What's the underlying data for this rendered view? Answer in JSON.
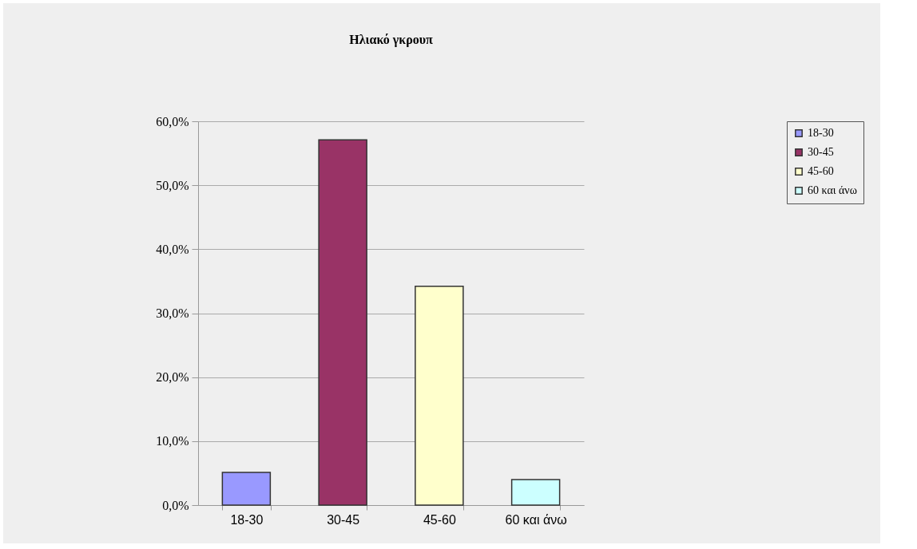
{
  "chart_data": {
    "type": "bar",
    "title": "Ηλιακό γκρουπ",
    "categories": [
      "18-30",
      "30-45",
      "45-60",
      "60 και άνω"
    ],
    "series": [
      {
        "name": "18-30",
        "color": "#9999ff",
        "values": [
          5.1,
          null,
          null,
          null
        ]
      },
      {
        "name": "30-45",
        "color": "#993366",
        "values": [
          null,
          57.1,
          null,
          null
        ]
      },
      {
        "name": "45-60",
        "color": "#ffffcc",
        "values": [
          null,
          null,
          34.2,
          null
        ]
      },
      {
        "name": "60 και άνω",
        "color": "#ccffff",
        "values": [
          null,
          null,
          null,
          4.0
        ]
      }
    ],
    "ylim": [
      0,
      60
    ],
    "yticks": [
      {
        "value": 0,
        "label": "0,0%"
      },
      {
        "value": 10,
        "label": "10,0%"
      },
      {
        "value": 20,
        "label": "20,0%"
      },
      {
        "value": 30,
        "label": "30,0%"
      },
      {
        "value": 40,
        "label": "40,0%"
      },
      {
        "value": 50,
        "label": "50,0%"
      },
      {
        "value": 60,
        "label": "60,0%"
      }
    ],
    "grid": "y",
    "legend": "right"
  }
}
